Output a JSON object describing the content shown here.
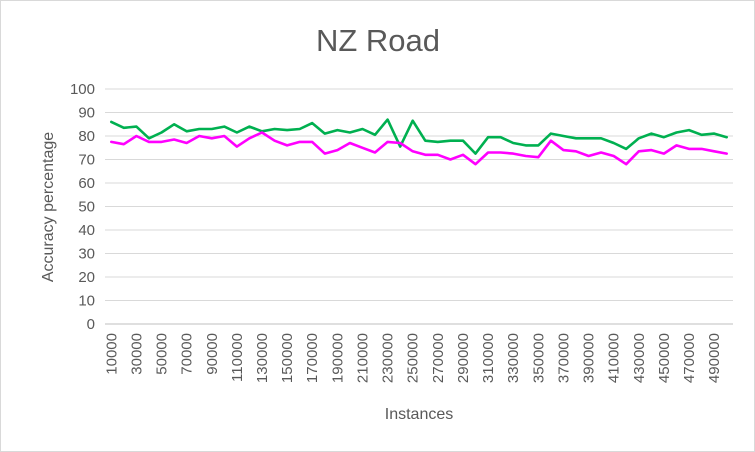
{
  "chart_data": {
    "type": "line",
    "title": "NZ Road",
    "xlabel": "Instances",
    "ylabel": "Accuracy percentage",
    "ylim": [
      0,
      100
    ],
    "yticks": [
      "0",
      "10",
      "20",
      "30",
      "40",
      "50",
      "60",
      "70",
      "80",
      "90",
      "100"
    ],
    "x": [
      10000,
      20000,
      30000,
      40000,
      50000,
      60000,
      70000,
      80000,
      90000,
      100000,
      110000,
      120000,
      130000,
      140000,
      150000,
      160000,
      170000,
      180000,
      190000,
      200000,
      210000,
      220000,
      230000,
      240000,
      250000,
      260000,
      270000,
      280000,
      290000,
      300000,
      310000,
      320000,
      330000,
      340000,
      350000,
      360000,
      370000,
      380000,
      390000,
      400000,
      410000,
      420000,
      430000,
      440000,
      450000,
      460000,
      470000,
      480000,
      490000,
      500000
    ],
    "xtick_labels": [
      "10000",
      "30000",
      "50000",
      "70000",
      "90000",
      "110000",
      "130000",
      "150000",
      "170000",
      "190000",
      "210000",
      "230000",
      "250000",
      "270000",
      "290000",
      "310000",
      "330000",
      "350000",
      "370000",
      "390000",
      "410000",
      "430000",
      "450000",
      "470000",
      "490000"
    ],
    "grid": true,
    "legend": "none",
    "series": [
      {
        "color": "#00b050",
        "values": [
          86,
          83.5,
          84,
          79,
          81.5,
          85,
          82,
          83,
          83,
          84,
          81.5,
          84,
          82,
          83,
          82.5,
          83,
          85.5,
          81,
          82.5,
          81.5,
          83,
          80.5,
          87,
          75.5,
          86.5,
          78,
          77.5,
          78,
          78,
          72.5,
          79.5,
          79.5,
          77,
          76,
          76,
          81,
          80,
          79,
          79,
          79,
          77,
          74.5,
          79,
          81,
          79.5,
          81.5,
          82.5,
          80.5,
          81,
          79.5
        ]
      },
      {
        "color": "#ff00ff",
        "values": [
          77.5,
          76.5,
          80,
          77.5,
          77.5,
          78.5,
          77,
          80,
          79,
          80,
          75.5,
          79,
          81.5,
          78,
          76,
          77.5,
          77.5,
          72.5,
          74,
          77,
          75,
          73,
          77.5,
          77,
          73.5,
          72,
          72,
          70,
          72,
          68,
          73,
          73,
          72.5,
          71.5,
          71,
          78,
          74,
          73.5,
          71.5,
          73,
          71.5,
          68,
          73.5,
          74,
          72.5,
          76,
          74.5,
          74.5,
          73.5,
          72.5
        ]
      }
    ]
  }
}
